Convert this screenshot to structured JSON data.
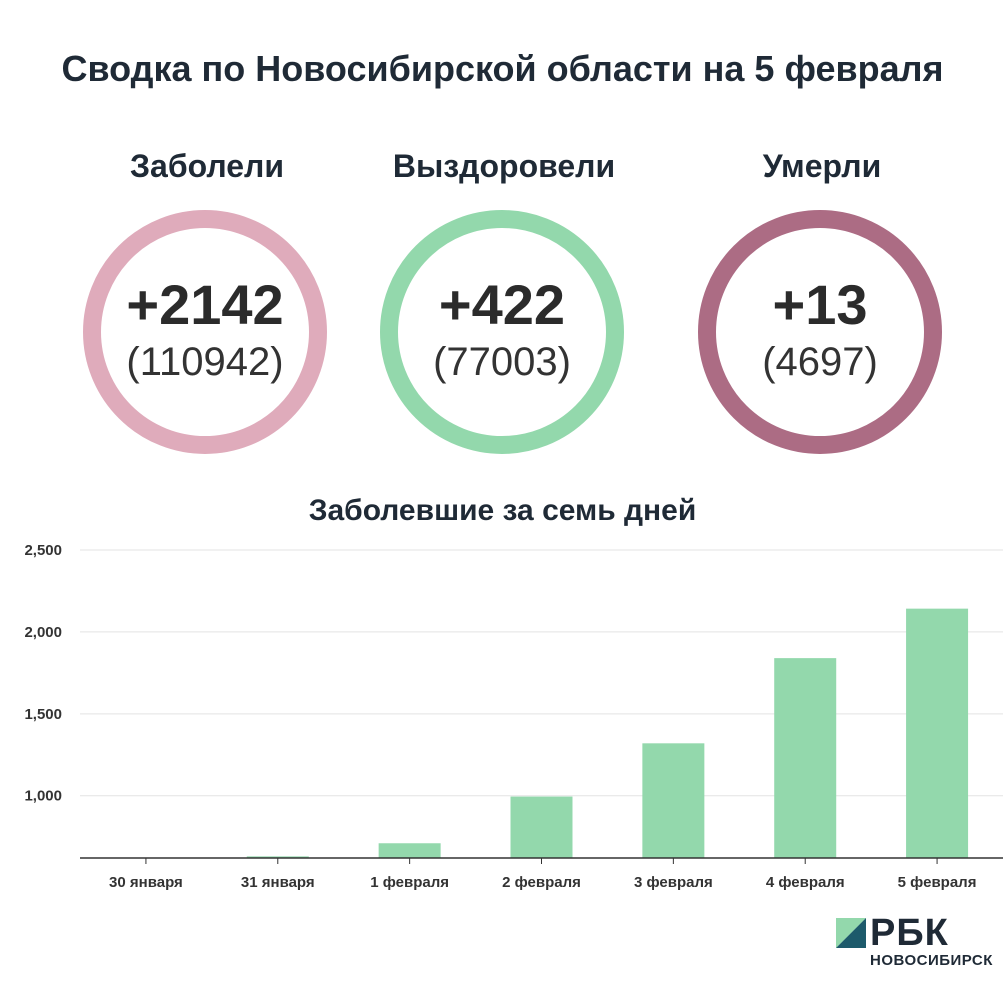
{
  "header": {
    "title": "Сводка по Новосибирской области на 5 февраля"
  },
  "stats": [
    {
      "label": "Заболели",
      "delta": "+2142",
      "total": "(110942)",
      "color": "#dfabbb"
    },
    {
      "label": "Выздоровели",
      "delta": "+422",
      "total": "(77003)",
      "color": "#93d8ac"
    },
    {
      "label": "Умерли",
      "delta": "+13",
      "total": "(4697)",
      "color": "#ac6c84"
    }
  ],
  "chart_data": {
    "type": "bar",
    "title": "Заболевшие за семь дней",
    "categories": [
      "30 января",
      "31 января",
      "1 февраля",
      "2 февраля",
      "3 февраля",
      "4 февраля",
      "5 февраля"
    ],
    "values": [
      600,
      630,
      710,
      995,
      1320,
      1840,
      2142
    ],
    "ylim": [
      620,
      2500
    ],
    "yticks": [
      1000,
      1500,
      2000,
      2500
    ],
    "ytick_labels": [
      "1,000",
      "1,500",
      "2,000",
      "2,500"
    ],
    "grid": true,
    "bar_color": "#93d8ac"
  },
  "logo": {
    "brand": "РБК",
    "city": "НОВОСИБИРСК"
  }
}
